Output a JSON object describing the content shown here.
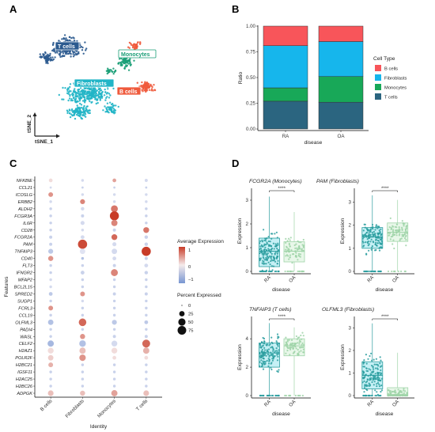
{
  "panels": {
    "a": "A",
    "b": "B",
    "c": "C",
    "d": "D"
  },
  "tsne": {
    "clusters": [
      {
        "label": "T cells",
        "color": "#2b5a8f"
      },
      {
        "label": "Monocytes",
        "color": "#1b9e77"
      },
      {
        "label": "Fibroblasts",
        "color": "#22b5c7"
      },
      {
        "label": "B cells",
        "color": "#ef5a3c"
      }
    ],
    "xlabel": "tSNE_1",
    "ylabel": "tSNE_2"
  },
  "chart_data": [
    {
      "type": "bar",
      "stacked": true,
      "categories": [
        "RA",
        "OA"
      ],
      "xlabel": "disease",
      "ylabel": "Ratio",
      "ylim": [
        0,
        1
      ],
      "yticks": [
        "0.00",
        "0.25",
        "0.50",
        "0.75",
        "1.00"
      ],
      "legend_title": "Cell Type",
      "legend_position": "right",
      "series": [
        {
          "name": "B cells",
          "color": "#f8555a",
          "values": [
            0.19,
            0.15
          ]
        },
        {
          "name": "Fibroblasts",
          "color": "#16b6ec",
          "values": [
            0.41,
            0.34
          ]
        },
        {
          "name": "Monocytes",
          "color": "#18a858",
          "values": [
            0.13,
            0.25
          ]
        },
        {
          "name": "T cells",
          "color": "#2b6580",
          "values": [
            0.27,
            0.26
          ]
        }
      ]
    },
    {
      "type": "scatter",
      "subtype": "dotplot",
      "xlabel": "Identity",
      "ylabel": "Features",
      "identities": [
        "B cells",
        "Fibroblasts",
        "Monocytes",
        "T cells"
      ],
      "features": [
        "NFKBIE",
        "CCL21",
        "ICOSLG",
        "ERBB2",
        "ALDH2",
        "FCGR3A",
        "IL6R",
        "CD28",
        "FCGR2A",
        "PAM",
        "TNFAIP3",
        "CD40",
        "FLT3",
        "IFNGR2",
        "MFAP2",
        "BCL2L15",
        "SPRED2",
        "SUGP1",
        "FCRL3",
        "CCL19",
        "OLFML3",
        "PADI4",
        "WASL",
        "CELF2",
        "H2AZ1",
        "POLR2F",
        "H2BC21",
        "IGSF11",
        "H2AC25",
        "H2BC26",
        "ADPGK"
      ],
      "avg_expression": [
        [
          0.1,
          -0.2,
          0.5,
          -0.2
        ],
        [
          -0.2,
          -0.3,
          -0.3,
          -0.3
        ],
        [
          0.6,
          -0.2,
          -0.2,
          -0.2
        ],
        [
          -0.2,
          0.7,
          -0.2,
          -0.2
        ],
        [
          -0.3,
          -0.2,
          0.8,
          -0.3
        ],
        [
          -0.3,
          -0.3,
          1.2,
          -0.3
        ],
        [
          -0.3,
          -0.2,
          0.7,
          -0.3
        ],
        [
          -0.3,
          -0.2,
          -0.3,
          0.8
        ],
        [
          -0.3,
          -0.2,
          0.9,
          -0.3
        ],
        [
          -0.3,
          1.1,
          -0.2,
          -0.3
        ],
        [
          -0.4,
          -0.1,
          -0.2,
          1.2
        ],
        [
          0.6,
          -0.5,
          -0.2,
          -0.3
        ],
        [
          -0.3,
          -0.3,
          -0.3,
          -0.2
        ],
        [
          -0.3,
          -0.3,
          0.7,
          -0.3
        ],
        [
          -0.2,
          -0.3,
          -0.3,
          -0.3
        ],
        [
          -0.2,
          -0.3,
          -0.3,
          -0.3
        ],
        [
          -0.4,
          0.6,
          -0.3,
          -0.3
        ],
        [
          -0.3,
          -0.2,
          -0.3,
          -0.3
        ],
        [
          0.6,
          -0.3,
          -0.3,
          -0.3
        ],
        [
          -0.3,
          -0.3,
          -0.3,
          -0.3
        ],
        [
          -0.5,
          0.9,
          -0.4,
          -0.4
        ],
        [
          -0.3,
          -0.3,
          -0.3,
          -0.3
        ],
        [
          -0.3,
          0.6,
          -0.3,
          -0.3
        ],
        [
          -0.6,
          -0.5,
          -0.2,
          0.9
        ],
        [
          0.1,
          0.3,
          0.1,
          0.4
        ],
        [
          0.2,
          0.6,
          0.1,
          0.1
        ],
        [
          0.4,
          -0.3,
          -0.3,
          -0.3
        ],
        [
          -0.3,
          -0.3,
          -0.3,
          -0.3
        ],
        [
          -0.3,
          -0.3,
          -0.3,
          -0.3
        ],
        [
          -0.3,
          -0.3,
          -0.3,
          -0.3
        ],
        [
          0.3,
          0.3,
          0.5,
          0.3
        ]
      ],
      "pct_expressed": [
        [
          10,
          4,
          10,
          6
        ],
        [
          2,
          2,
          2,
          2
        ],
        [
          18,
          4,
          4,
          4
        ],
        [
          4,
          20,
          4,
          4
        ],
        [
          4,
          8,
          45,
          4
        ],
        [
          4,
          6,
          82,
          4
        ],
        [
          4,
          12,
          35,
          4
        ],
        [
          4,
          4,
          6,
          30
        ],
        [
          6,
          10,
          30,
          8
        ],
        [
          6,
          85,
          12,
          8
        ],
        [
          20,
          25,
          25,
          85
        ],
        [
          22,
          4,
          10,
          6
        ],
        [
          4,
          4,
          6,
          10
        ],
        [
          4,
          10,
          45,
          8
        ],
        [
          4,
          4,
          4,
          4
        ],
        [
          4,
          4,
          4,
          4
        ],
        [
          10,
          18,
          6,
          6
        ],
        [
          4,
          4,
          4,
          4
        ],
        [
          18,
          4,
          4,
          4
        ],
        [
          4,
          4,
          4,
          4
        ],
        [
          25,
          55,
          20,
          10
        ],
        [
          4,
          4,
          4,
          4
        ],
        [
          4,
          22,
          6,
          6
        ],
        [
          35,
          40,
          30,
          60
        ],
        [
          30,
          35,
          30,
          35
        ],
        [
          25,
          38,
          10,
          10
        ],
        [
          18,
          4,
          4,
          4
        ],
        [
          4,
          4,
          4,
          4
        ],
        [
          4,
          4,
          4,
          4
        ],
        [
          4,
          4,
          4,
          4
        ],
        [
          28,
          22,
          35,
          28
        ]
      ],
      "legend_expression_title": "Average Expression",
      "legend_expression_ticks": [
        "1",
        "0",
        "−1"
      ],
      "legend_percent_title": "Percent Expressed",
      "legend_percent_ticks": [
        "0",
        "25",
        "50",
        "75"
      ]
    },
    {
      "type": "scatter",
      "subtype": "boxplot",
      "title": "FCGR2A (Monocytes)",
      "categories": [
        "RA",
        "OA"
      ],
      "xlabel": "disease",
      "ylabel": "Expression",
      "yticks": [
        "0",
        "1",
        "2",
        "3"
      ],
      "significance": "****",
      "median": [
        0.85,
        0.85
      ],
      "q1": [
        0.2,
        0.4
      ],
      "q3": [
        1.4,
        1.25
      ],
      "max": [
        3.15,
        2.5
      ]
    },
    {
      "type": "scatter",
      "subtype": "boxplot",
      "title": "PAM (Fibroblasts)",
      "categories": [
        "RA",
        "OA"
      ],
      "xlabel": "disease",
      "ylabel": "Expression",
      "yticks": [
        "0",
        "1",
        "2",
        "3"
      ],
      "significance": "****",
      "median": [
        1.5,
        1.7
      ],
      "q1": [
        1.0,
        1.3
      ],
      "q3": [
        1.9,
        2.1
      ],
      "max": [
        3.3,
        3.1
      ]
    },
    {
      "type": "scatter",
      "subtype": "boxplot",
      "title": "TNFAIP3 (T cells)",
      "categories": [
        "RA",
        "OA"
      ],
      "xlabel": "disease",
      "ylabel": "Expression",
      "yticks": [
        "0",
        "2",
        "4"
      ],
      "significance": "****",
      "median": [
        3.0,
        3.5
      ],
      "q1": [
        2.0,
        2.8
      ],
      "q3": [
        3.7,
        4.0
      ],
      "max": [
        5.1,
        4.8
      ]
    },
    {
      "type": "scatter",
      "subtype": "boxplot",
      "title": "OLFML3 (Fibroblasts)",
      "categories": [
        "RA",
        "OA"
      ],
      "xlabel": "disease",
      "ylabel": "Expression",
      "yticks": [
        "0",
        "1",
        "2",
        "3"
      ],
      "significance": "****",
      "median": [
        0.9,
        0.05
      ],
      "q1": [
        0.3,
        0.0
      ],
      "q3": [
        1.5,
        0.35
      ],
      "max": [
        3.2,
        1.9
      ]
    }
  ]
}
